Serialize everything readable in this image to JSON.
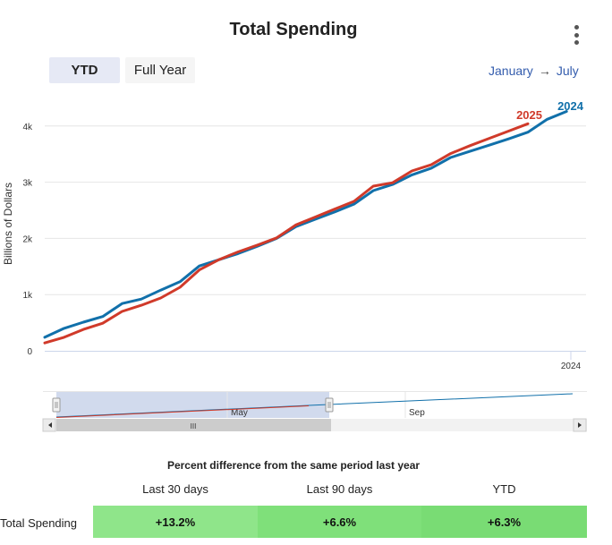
{
  "header": {
    "title": "Total Spending",
    "menu_icon": "kebab-menu-icon"
  },
  "range_buttons": {
    "ytd_label": "YTD",
    "full_year_label": "Full Year",
    "selected": "YTD"
  },
  "date_range": {
    "from": "January",
    "arrow": "→",
    "to": "July"
  },
  "chart_data": {
    "type": "line",
    "ylabel": "Billions of Dollars",
    "yticks": [
      {
        "value": 0,
        "label": "0"
      },
      {
        "value": 1000,
        "label": "1k"
      },
      {
        "value": 2000,
        "label": "2k"
      },
      {
        "value": 3000,
        "label": "3k"
      },
      {
        "value": 4000,
        "label": "4k"
      }
    ],
    "ylim": [
      0,
      4800
    ],
    "x_label_main": "2024",
    "grid": true,
    "series": [
      {
        "name": "2024",
        "color": "#1170aa",
        "values": [
          240,
          400,
          510,
          610,
          840,
          920,
          1080,
          1230,
          1510,
          1620,
          1730,
          1860,
          2000,
          2210,
          2340,
          2470,
          2610,
          2850,
          2960,
          3130,
          3250,
          3440,
          3550,
          3660,
          3770,
          3890,
          4120,
          4260
        ]
      },
      {
        "name": "2025",
        "color": "#d03a2a",
        "values": [
          140,
          240,
          380,
          490,
          700,
          810,
          940,
          1130,
          1440,
          1620,
          1760,
          1880,
          2010,
          2240,
          2380,
          2520,
          2660,
          2930,
          2990,
          3200,
          3310,
          3510,
          3650,
          3780,
          3910,
          4040
        ]
      }
    ],
    "navigator": {
      "tick_labels": [
        "May",
        "Sep"
      ],
      "scrollbar_label": "III"
    }
  },
  "comparison": {
    "title": "Percent difference from the same period last year",
    "columns": [
      "Last 30 days",
      "Last 90 days",
      "YTD"
    ],
    "row_label": "Total Spending",
    "values": [
      "+13.2%",
      "+6.6%",
      "+6.3%"
    ],
    "colors": [
      "#8fe58a",
      "#7fe07a",
      "#79dc74"
    ]
  }
}
